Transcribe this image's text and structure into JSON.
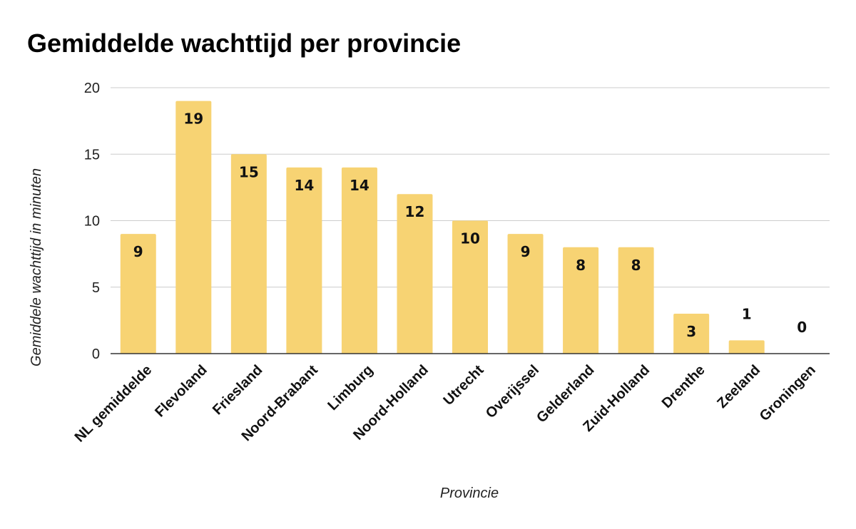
{
  "chart_data": {
    "type": "bar",
    "title": "Gemiddelde wachttijd per provincie",
    "xlabel": "Provincie",
    "ylabel": "Gemiddele wachttijd in minuten",
    "categories": [
      "NL gemiddelde",
      "Flevoland",
      "Friesland",
      "Noord-Brabant",
      "Limburg",
      "Noord-Holland",
      "Utrecht",
      "Overijssel",
      "Gelderland",
      "Zuid-Holland",
      "Drenthe",
      "Zeeland",
      "Groningen"
    ],
    "values": [
      9,
      19,
      15,
      14,
      14,
      12,
      10,
      9,
      8,
      8,
      3,
      1,
      0
    ],
    "ylim": [
      0,
      20
    ],
    "yticks": [
      0,
      5,
      10,
      15,
      20
    ],
    "grid": true,
    "legend": "none",
    "colors": {
      "bar": "#f7d373",
      "grid": "#cccccc",
      "axis": "#333333"
    }
  }
}
